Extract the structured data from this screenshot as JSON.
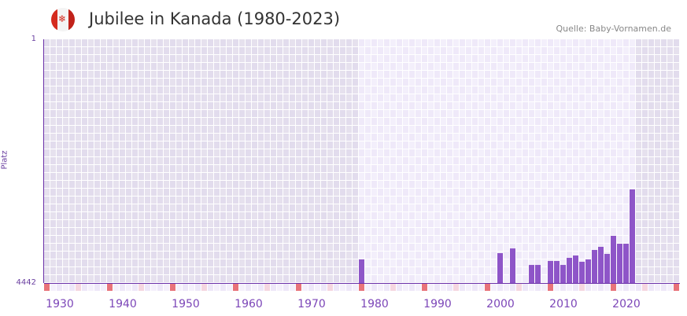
{
  "header": {
    "title": "Jubilee in Kanada (1980-2023)",
    "source": "Quelle: Baby-Vornamen.de",
    "flag_icon": "canada-flag-icon"
  },
  "chart_data": {
    "type": "bar",
    "title": "Jubilee in Kanada (1980-2023)",
    "ylabel": "Platz",
    "xlabel": "",
    "y_ticks": [
      "1",
      "4442"
    ],
    "ylim": [
      4442,
      1
    ],
    "xlim": [
      1928,
      2028
    ],
    "x_ticks": [
      "1930",
      "1940",
      "1950",
      "1960",
      "1970",
      "1980",
      "1990",
      "2000",
      "2010",
      "2020"
    ],
    "highlight_range": [
      1978,
      2021
    ],
    "colors": {
      "bar": "#8e55c8",
      "axis": "#6a2fa8",
      "marker_major": "#e8737a",
      "marker_minor": "#f5d6e0"
    },
    "x": [
      1978,
      2000,
      2002,
      2005,
      2006,
      2008,
      2009,
      2010,
      2011,
      2012,
      2013,
      2014,
      2015,
      2016,
      2017,
      2018,
      2019,
      2020,
      2021
    ],
    "values": [
      4012,
      3898,
      3812,
      4113,
      4113,
      4041,
      4041,
      4113,
      3984,
      3941,
      4055,
      4012,
      3840,
      3783,
      3912,
      3582,
      3726,
      3726,
      2737
    ]
  }
}
